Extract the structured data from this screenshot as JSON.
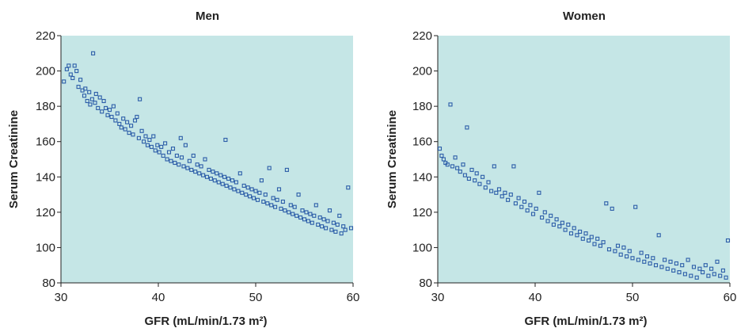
{
  "chart_data": [
    {
      "type": "scatter",
      "title": "Men",
      "xlabel": "GFR (mL/min/1.73 m²)",
      "ylabel": "Serum Creatinine",
      "xlim": [
        30,
        60
      ],
      "ylim": [
        80,
        220
      ],
      "xticks": [
        30,
        40,
        50,
        60
      ],
      "yticks": [
        80,
        100,
        120,
        140,
        160,
        180,
        200,
        220
      ],
      "grid": false,
      "marker_color": "#2c5da8",
      "plot_background": "#c5e6e6",
      "points": [
        [
          30.3,
          194
        ],
        [
          30.6,
          201
        ],
        [
          30.8,
          203
        ],
        [
          31.0,
          198
        ],
        [
          31.2,
          196
        ],
        [
          31.4,
          203
        ],
        [
          31.6,
          200
        ],
        [
          31.8,
          191
        ],
        [
          32.0,
          195
        ],
        [
          32.2,
          189
        ],
        [
          32.4,
          186
        ],
        [
          32.5,
          190
        ],
        [
          32.7,
          183
        ],
        [
          32.9,
          188
        ],
        [
          33.0,
          181
        ],
        [
          33.2,
          184
        ],
        [
          33.3,
          210
        ],
        [
          33.5,
          182
        ],
        [
          33.6,
          187
        ],
        [
          33.8,
          179
        ],
        [
          34.0,
          185
        ],
        [
          34.2,
          177
        ],
        [
          34.4,
          183
        ],
        [
          34.6,
          179
        ],
        [
          34.8,
          175
        ],
        [
          35.0,
          178
        ],
        [
          35.2,
          174
        ],
        [
          35.4,
          180
        ],
        [
          35.6,
          172
        ],
        [
          35.8,
          176
        ],
        [
          36.0,
          170
        ],
        [
          36.2,
          168
        ],
        [
          36.4,
          173
        ],
        [
          36.6,
          167
        ],
        [
          36.8,
          171
        ],
        [
          37.0,
          165
        ],
        [
          37.2,
          169
        ],
        [
          37.4,
          164
        ],
        [
          37.6,
          172
        ],
        [
          37.8,
          174
        ],
        [
          38.0,
          162
        ],
        [
          38.1,
          184
        ],
        [
          38.3,
          166
        ],
        [
          38.5,
          160
        ],
        [
          38.7,
          163
        ],
        [
          38.9,
          158
        ],
        [
          39.1,
          161
        ],
        [
          39.3,
          157
        ],
        [
          39.5,
          163
        ],
        [
          39.7,
          155
        ],
        [
          39.9,
          158
        ],
        [
          40.1,
          154
        ],
        [
          40.3,
          157
        ],
        [
          40.5,
          152
        ],
        [
          40.7,
          159
        ],
        [
          40.9,
          150
        ],
        [
          41.1,
          154
        ],
        [
          41.3,
          149
        ],
        [
          41.5,
          156
        ],
        [
          41.7,
          148
        ],
        [
          41.9,
          152
        ],
        [
          42.1,
          147
        ],
        [
          42.3,
          162
        ],
        [
          42.4,
          151
        ],
        [
          42.6,
          146
        ],
        [
          42.8,
          158
        ],
        [
          43.0,
          145
        ],
        [
          43.2,
          149
        ],
        [
          43.4,
          144
        ],
        [
          43.6,
          152
        ],
        [
          43.8,
          143
        ],
        [
          44.0,
          147
        ],
        [
          44.2,
          142
        ],
        [
          44.4,
          146
        ],
        [
          44.6,
          141
        ],
        [
          44.8,
          150
        ],
        [
          45.0,
          140
        ],
        [
          45.2,
          144
        ],
        [
          45.4,
          139
        ],
        [
          45.6,
          143
        ],
        [
          45.8,
          138
        ],
        [
          46.0,
          142
        ],
        [
          46.2,
          137
        ],
        [
          46.4,
          141
        ],
        [
          46.6,
          136
        ],
        [
          46.8,
          140
        ],
        [
          46.9,
          161
        ],
        [
          47.0,
          135
        ],
        [
          47.2,
          139
        ],
        [
          47.4,
          134
        ],
        [
          47.6,
          138
        ],
        [
          47.8,
          133
        ],
        [
          48.0,
          137
        ],
        [
          48.2,
          132
        ],
        [
          48.4,
          142
        ],
        [
          48.6,
          131
        ],
        [
          48.8,
          135
        ],
        [
          49.0,
          130
        ],
        [
          49.2,
          134
        ],
        [
          49.4,
          129
        ],
        [
          49.6,
          133
        ],
        [
          49.8,
          128
        ],
        [
          50.0,
          132
        ],
        [
          50.2,
          127
        ],
        [
          50.4,
          131
        ],
        [
          50.6,
          138
        ],
        [
          50.8,
          126
        ],
        [
          51.0,
          130
        ],
        [
          51.2,
          125
        ],
        [
          51.4,
          145
        ],
        [
          51.6,
          124
        ],
        [
          51.8,
          128
        ],
        [
          52.0,
          123
        ],
        [
          52.2,
          127
        ],
        [
          52.4,
          133
        ],
        [
          52.6,
          122
        ],
        [
          52.8,
          126
        ],
        [
          53.0,
          121
        ],
        [
          53.2,
          144
        ],
        [
          53.4,
          120
        ],
        [
          53.6,
          124
        ],
        [
          53.8,
          119
        ],
        [
          54.0,
          123
        ],
        [
          54.2,
          118
        ],
        [
          54.4,
          130
        ],
        [
          54.6,
          117
        ],
        [
          54.8,
          121
        ],
        [
          55.0,
          116
        ],
        [
          55.2,
          120
        ],
        [
          55.4,
          115
        ],
        [
          55.6,
          119
        ],
        [
          55.8,
          114
        ],
        [
          56.0,
          118
        ],
        [
          56.2,
          124
        ],
        [
          56.4,
          113
        ],
        [
          56.6,
          117
        ],
        [
          56.8,
          112
        ],
        [
          57.0,
          116
        ],
        [
          57.2,
          111
        ],
        [
          57.4,
          115
        ],
        [
          57.6,
          121
        ],
        [
          57.8,
          110
        ],
        [
          58.0,
          114
        ],
        [
          58.2,
          109
        ],
        [
          58.4,
          113
        ],
        [
          58.6,
          118
        ],
        [
          58.8,
          108
        ],
        [
          59.0,
          112
        ],
        [
          59.2,
          110
        ],
        [
          59.5,
          134
        ],
        [
          59.8,
          111
        ]
      ]
    },
    {
      "type": "scatter",
      "title": "Women",
      "xlabel": "GFR (mL/min/1.73 m²)",
      "ylabel": "Serum Creatinine",
      "xlim": [
        30,
        60
      ],
      "ylim": [
        80,
        220
      ],
      "xticks": [
        30,
        40,
        50,
        60
      ],
      "yticks": [
        80,
        100,
        120,
        140,
        160,
        180,
        200,
        220
      ],
      "grid": false,
      "marker_color": "#2c5da8",
      "plot_background": "#c5e6e6",
      "points": [
        [
          30.2,
          156
        ],
        [
          30.4,
          152
        ],
        [
          30.6,
          150
        ],
        [
          30.8,
          148
        ],
        [
          31.0,
          147
        ],
        [
          31.3,
          181
        ],
        [
          31.5,
          146
        ],
        [
          31.8,
          151
        ],
        [
          32.0,
          145
        ],
        [
          32.3,
          143
        ],
        [
          32.6,
          147
        ],
        [
          32.8,
          141
        ],
        [
          33.0,
          168
        ],
        [
          33.2,
          139
        ],
        [
          33.5,
          144
        ],
        [
          33.8,
          138
        ],
        [
          34.0,
          142
        ],
        [
          34.3,
          136
        ],
        [
          34.6,
          140
        ],
        [
          34.9,
          134
        ],
        [
          35.2,
          137
        ],
        [
          35.5,
          132
        ],
        [
          35.8,
          146
        ],
        [
          36.0,
          131
        ],
        [
          36.3,
          133
        ],
        [
          36.6,
          129
        ],
        [
          36.9,
          131
        ],
        [
          37.2,
          127
        ],
        [
          37.5,
          130
        ],
        [
          37.8,
          146
        ],
        [
          38.0,
          125
        ],
        [
          38.3,
          128
        ],
        [
          38.6,
          123
        ],
        [
          38.9,
          126
        ],
        [
          39.2,
          121
        ],
        [
          39.5,
          124
        ],
        [
          39.8,
          119
        ],
        [
          40.1,
          122
        ],
        [
          40.4,
          131
        ],
        [
          40.7,
          117
        ],
        [
          41.0,
          120
        ],
        [
          41.3,
          115
        ],
        [
          41.6,
          118
        ],
        [
          41.9,
          113
        ],
        [
          42.2,
          116
        ],
        [
          42.5,
          112
        ],
        [
          42.8,
          114
        ],
        [
          43.1,
          110
        ],
        [
          43.4,
          113
        ],
        [
          43.7,
          108
        ],
        [
          44.0,
          111
        ],
        [
          44.3,
          107
        ],
        [
          44.6,
          109
        ],
        [
          44.9,
          105
        ],
        [
          45.2,
          108
        ],
        [
          45.5,
          104
        ],
        [
          45.8,
          106
        ],
        [
          46.1,
          102
        ],
        [
          46.4,
          105
        ],
        [
          46.7,
          101
        ],
        [
          47.0,
          103
        ],
        [
          47.3,
          125
        ],
        [
          47.6,
          99
        ],
        [
          47.9,
          122
        ],
        [
          48.2,
          98
        ],
        [
          48.5,
          101
        ],
        [
          48.8,
          96
        ],
        [
          49.1,
          100
        ],
        [
          49.4,
          95
        ],
        [
          49.7,
          98
        ],
        [
          50.0,
          94
        ],
        [
          50.3,
          123
        ],
        [
          50.6,
          93
        ],
        [
          50.9,
          97
        ],
        [
          51.2,
          92
        ],
        [
          51.5,
          95
        ],
        [
          51.8,
          91
        ],
        [
          52.1,
          94
        ],
        [
          52.4,
          90
        ],
        [
          52.7,
          107
        ],
        [
          53.0,
          89
        ],
        [
          53.3,
          93
        ],
        [
          53.6,
          88
        ],
        [
          53.9,
          92
        ],
        [
          54.2,
          87
        ],
        [
          54.5,
          91
        ],
        [
          54.8,
          86
        ],
        [
          55.1,
          90
        ],
        [
          55.4,
          85
        ],
        [
          55.7,
          93
        ],
        [
          56.0,
          84
        ],
        [
          56.3,
          89
        ],
        [
          56.6,
          83
        ],
        [
          56.9,
          88
        ],
        [
          57.2,
          86
        ],
        [
          57.5,
          90
        ],
        [
          57.8,
          84
        ],
        [
          58.1,
          88
        ],
        [
          58.4,
          85
        ],
        [
          58.7,
          92
        ],
        [
          59.0,
          84
        ],
        [
          59.3,
          87
        ],
        [
          59.6,
          83
        ],
        [
          59.8,
          104
        ]
      ]
    }
  ]
}
